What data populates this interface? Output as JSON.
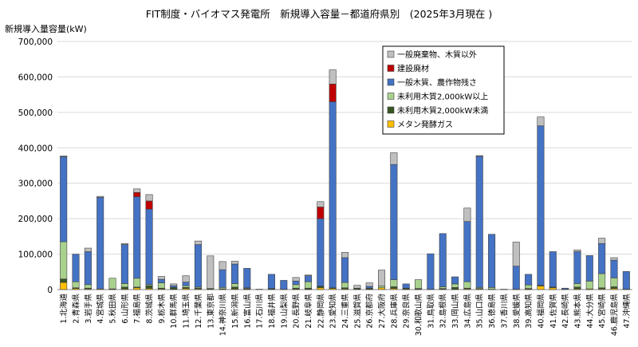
{
  "chart_data": {
    "type": "bar",
    "stacked": true,
    "title": "FIT制度・バイオマス発電所　新規導入容量－都道府県別　(2025年3月現在 )",
    "ylabel": "新規導入量容量(kW)",
    "xlabel": "",
    "ylim": [
      0,
      700000
    ],
    "yticks": [
      0,
      100000,
      200000,
      300000,
      400000,
      500000,
      600000,
      700000
    ],
    "ytick_labels": [
      "0",
      "100,000",
      "200,000",
      "300,000",
      "400,000",
      "500,000",
      "600,000",
      "700,000"
    ],
    "grid": true,
    "legend_position": "top-right",
    "categories": [
      "1.北海道",
      "2.青森県",
      "3.岩手県",
      "4.宮城県",
      "5.秋田県",
      "6.山形県",
      "7.福島県",
      "8.茨城県",
      "9.栃木県",
      "10.群馬県",
      "11.埼玉県",
      "12.千葉県",
      "13.東京都",
      "14.神奈川県",
      "15.新潟県",
      "16.富山県",
      "17.石川県",
      "18.福井県",
      "19.山梨県",
      "20.長野県",
      "21.岐阜県",
      "22.静岡県",
      "23.愛知県",
      "24.三重県",
      "25.滋賀県",
      "26.京都府",
      "27.大阪府",
      "28.兵庫県",
      "29.奈良県",
      "30.和歌山県",
      "31.鳥取県",
      "32.島根県",
      "33.岡山県",
      "34.広島県",
      "35.山口県",
      "36.徳島県",
      "37.香川県",
      "38.愛媛県",
      "39.高知県",
      "40.福岡県",
      "41.佐賀県",
      "42.長崎県",
      "43.熊本県",
      "44.大分県",
      "45.宮崎県",
      "46.鹿児島県",
      "47.沖縄県"
    ],
    "series": [
      {
        "name": "メタン発酵ガス",
        "color": "#ffc000",
        "values": [
          20000,
          3000,
          2000,
          2000,
          1000,
          2000,
          5000,
          3000,
          2000,
          1000,
          3000,
          2000,
          0,
          1000,
          2000,
          1000,
          1000,
          1000,
          1000,
          1000,
          1000,
          5000,
          3000,
          2000,
          1000,
          1000,
          5000,
          3000,
          1000,
          1000,
          1000,
          1000,
          1000,
          2000,
          2000,
          1000,
          1000,
          1000,
          1000,
          10000,
          5000,
          1000,
          2000,
          2000,
          2000,
          3000,
          1000
        ]
      },
      {
        "name": "未利用木質2,000kW未満",
        "color": "#375623",
        "values": [
          10000,
          2000,
          2000,
          0,
          1000,
          5000,
          2000,
          8000,
          2000,
          5000,
          3000,
          2000,
          3000,
          1000,
          5000,
          2000,
          0,
          2000,
          0,
          3000,
          3000,
          5000,
          2000,
          3000,
          3000,
          3000,
          0,
          5000,
          3000,
          2000,
          0,
          2000,
          5000,
          2000,
          1000,
          0,
          0,
          0,
          2000,
          2000,
          2000,
          0,
          5000,
          0,
          3000,
          5000,
          0
        ]
      },
      {
        "name": "未利用木質2,000kW以上",
        "color": "#a9d18e",
        "values": [
          105000,
          17000,
          10000,
          0,
          30000,
          10000,
          25000,
          3000,
          15000,
          0,
          5000,
          3000,
          0,
          4000,
          10000,
          2000,
          0,
          0,
          0,
          10000,
          18000,
          0,
          0,
          15000,
          0,
          0,
          5000,
          20000,
          0,
          25000,
          0,
          5000,
          10000,
          18000,
          3000,
          5000,
          0,
          0,
          10000,
          0,
          0,
          0,
          10000,
          22000,
          40000,
          25000,
          0
        ]
      },
      {
        "name": "一般木質、農作物残さ",
        "color": "#4472c4",
        "values": [
          240000,
          78000,
          93000,
          258000,
          0,
          110000,
          230000,
          213000,
          10000,
          5000,
          10000,
          120000,
          0,
          50000,
          55000,
          55000,
          0,
          40000,
          25000,
          10000,
          17000,
          190000,
          525000,
          70000,
          0,
          5000,
          0,
          325000,
          12000,
          0,
          100000,
          150000,
          20000,
          170000,
          370000,
          150000,
          0,
          65000,
          30000,
          450000,
          100000,
          3000,
          90000,
          72000,
          85000,
          50000,
          50000
        ]
      },
      {
        "name": "建設廃材",
        "color": "#c00000",
        "values": [
          0,
          0,
          0,
          0,
          0,
          0,
          12000,
          23000,
          0,
          0,
          0,
          0,
          0,
          0,
          0,
          0,
          0,
          0,
          0,
          0,
          0,
          33000,
          50000,
          0,
          0,
          0,
          0,
          0,
          0,
          0,
          0,
          0,
          0,
          0,
          0,
          0,
          0,
          0,
          0,
          0,
          0,
          0,
          0,
          0,
          0,
          0,
          0
        ]
      },
      {
        "name": "一般廃棄物、木質以外",
        "color": "#bfbfbf",
        "values": [
          2000,
          0,
          10000,
          3000,
          0,
          3000,
          10000,
          18000,
          8000,
          5000,
          18000,
          10000,
          92000,
          23000,
          8000,
          0,
          0,
          0,
          0,
          10000,
          2000,
          15000,
          40000,
          15000,
          8000,
          10000,
          45000,
          33000,
          0,
          0,
          0,
          0,
          0,
          38000,
          2000,
          0,
          0,
          68000,
          0,
          25000,
          0,
          0,
          5000,
          0,
          15000,
          7000,
          0
        ]
      }
    ]
  }
}
